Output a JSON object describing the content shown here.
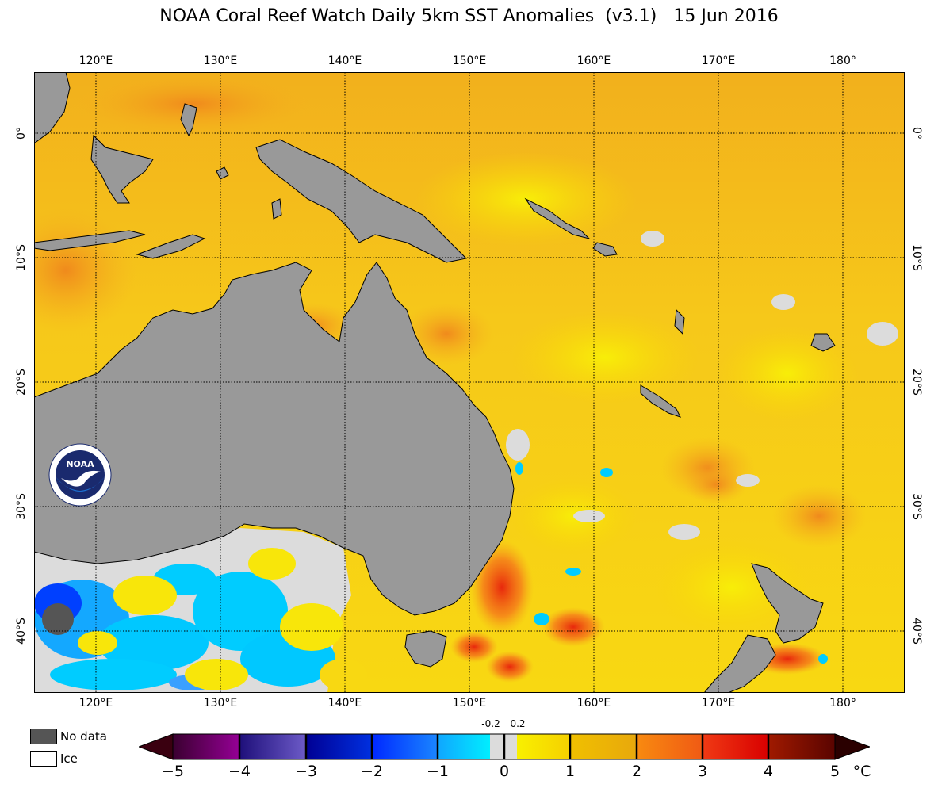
{
  "title": "NOAA Coral Reef Watch Daily 5km SST Anomalies  (v3.1)   15 Jun 2016",
  "longitude_labels": [
    "120°E",
    "130°E",
    "140°E",
    "150°E",
    "160°E",
    "170°E",
    "180°"
  ],
  "latitude_labels": [
    "0°",
    "10°S",
    "20°S",
    "30°S",
    "40°S"
  ],
  "legend": {
    "no_data": "No data",
    "ice": "Ice"
  },
  "colors": {
    "no_data": "#555555",
    "ice": "#ffffff",
    "land": "#999999"
  },
  "colorbar": {
    "ticks": [
      "−5",
      "−4",
      "−3",
      "−2",
      "−1",
      "0",
      "1",
      "2",
      "3",
      "4",
      "5"
    ],
    "unit": "°C",
    "near_zero_labels": [
      "-0.2",
      "0.2"
    ]
  },
  "logo": {
    "text": "NOAA"
  }
}
